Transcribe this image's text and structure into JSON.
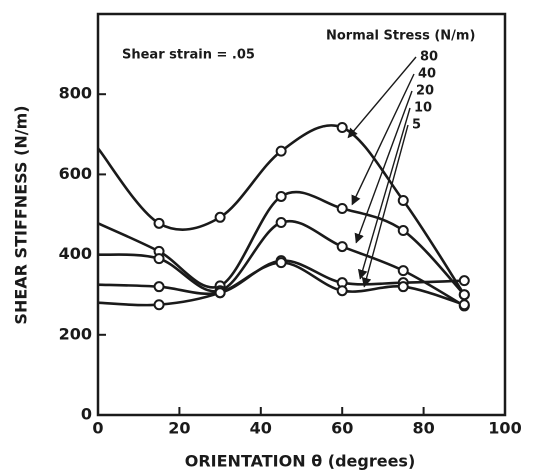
{
  "chart_data": {
    "type": "line",
    "annotation": "Shear strain = .05",
    "legend_title": "Normal Stress (N/m)",
    "xlabel": "ORIENTATION θ (degrees)",
    "ylabel": "SHEAR STIFFNESS (N/m)",
    "x": [
      0,
      15,
      30,
      45,
      60,
      75,
      90
    ],
    "series": [
      {
        "name": "80",
        "color": "#1a1a1a",
        "values": [
          665,
          478,
          493,
          658,
          717,
          535,
          300
        ]
      },
      {
        "name": "40",
        "color": "#1a1a1a",
        "values": [
          478,
          408,
          322,
          545,
          515,
          460,
          300
        ]
      },
      {
        "name": "20",
        "color": "#1a1a1a",
        "values": [
          400,
          390,
          310,
          480,
          420,
          360,
          272
        ]
      },
      {
        "name": "10",
        "color": "#1a1a1a",
        "values": [
          325,
          320,
          305,
          385,
          330,
          330,
          335
        ]
      },
      {
        "name": "5",
        "color": "#1a1a1a",
        "values": [
          280,
          275,
          305,
          380,
          310,
          320,
          275
        ]
      }
    ],
    "xlim": [
      0,
      100
    ],
    "ylim": [
      0,
      1000
    ],
    "xticks": [
      0,
      20,
      40,
      60,
      80,
      100
    ],
    "yticks": [
      0,
      200,
      400,
      600,
      800
    ]
  }
}
